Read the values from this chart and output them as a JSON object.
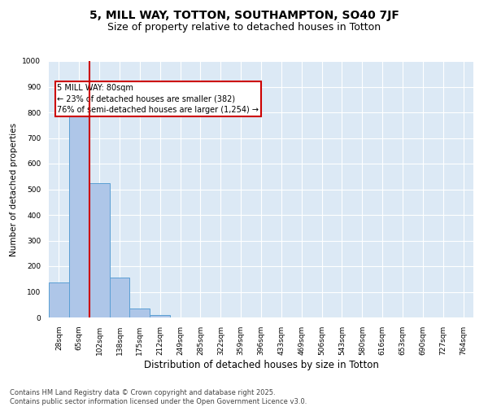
{
  "title_line1": "5, MILL WAY, TOTTON, SOUTHAMPTON, SO40 7JF",
  "title_line2": "Size of property relative to detached houses in Totton",
  "xlabel": "Distribution of detached houses by size in Totton",
  "ylabel": "Number of detached properties",
  "categories": [
    "28sqm",
    "65sqm",
    "102sqm",
    "138sqm",
    "175sqm",
    "212sqm",
    "249sqm",
    "285sqm",
    "322sqm",
    "359sqm",
    "396sqm",
    "433sqm",
    "469sqm",
    "506sqm",
    "543sqm",
    "580sqm",
    "616sqm",
    "653sqm",
    "690sqm",
    "727sqm",
    "764sqm"
  ],
  "bar_heights": [
    135,
    790,
    525,
    155,
    35,
    8,
    0,
    0,
    0,
    0,
    0,
    0,
    0,
    0,
    0,
    0,
    0,
    0,
    0,
    0,
    0
  ],
  "bar_color": "#aec6e8",
  "bar_edge_color": "#5a9fd4",
  "vline_x": 1.5,
  "vline_color": "#cc0000",
  "ylim": [
    0,
    1000
  ],
  "yticks": [
    0,
    100,
    200,
    300,
    400,
    500,
    600,
    700,
    800,
    900,
    1000
  ],
  "annotation_box_text": "5 MILL WAY: 80sqm\n← 23% of detached houses are smaller (382)\n76% of semi-detached houses are larger (1,254) →",
  "annotation_box_color": "#cc0000",
  "background_color": "#dce9f5",
  "footer_line1": "Contains HM Land Registry data © Crown copyright and database right 2025.",
  "footer_line2": "Contains public sector information licensed under the Open Government Licence v3.0.",
  "title_fontsize": 10,
  "subtitle_fontsize": 9,
  "xlabel_fontsize": 8.5,
  "ylabel_fontsize": 7.5,
  "tick_fontsize": 6.5,
  "footer_fontsize": 6.0,
  "annot_fontsize": 7.0
}
